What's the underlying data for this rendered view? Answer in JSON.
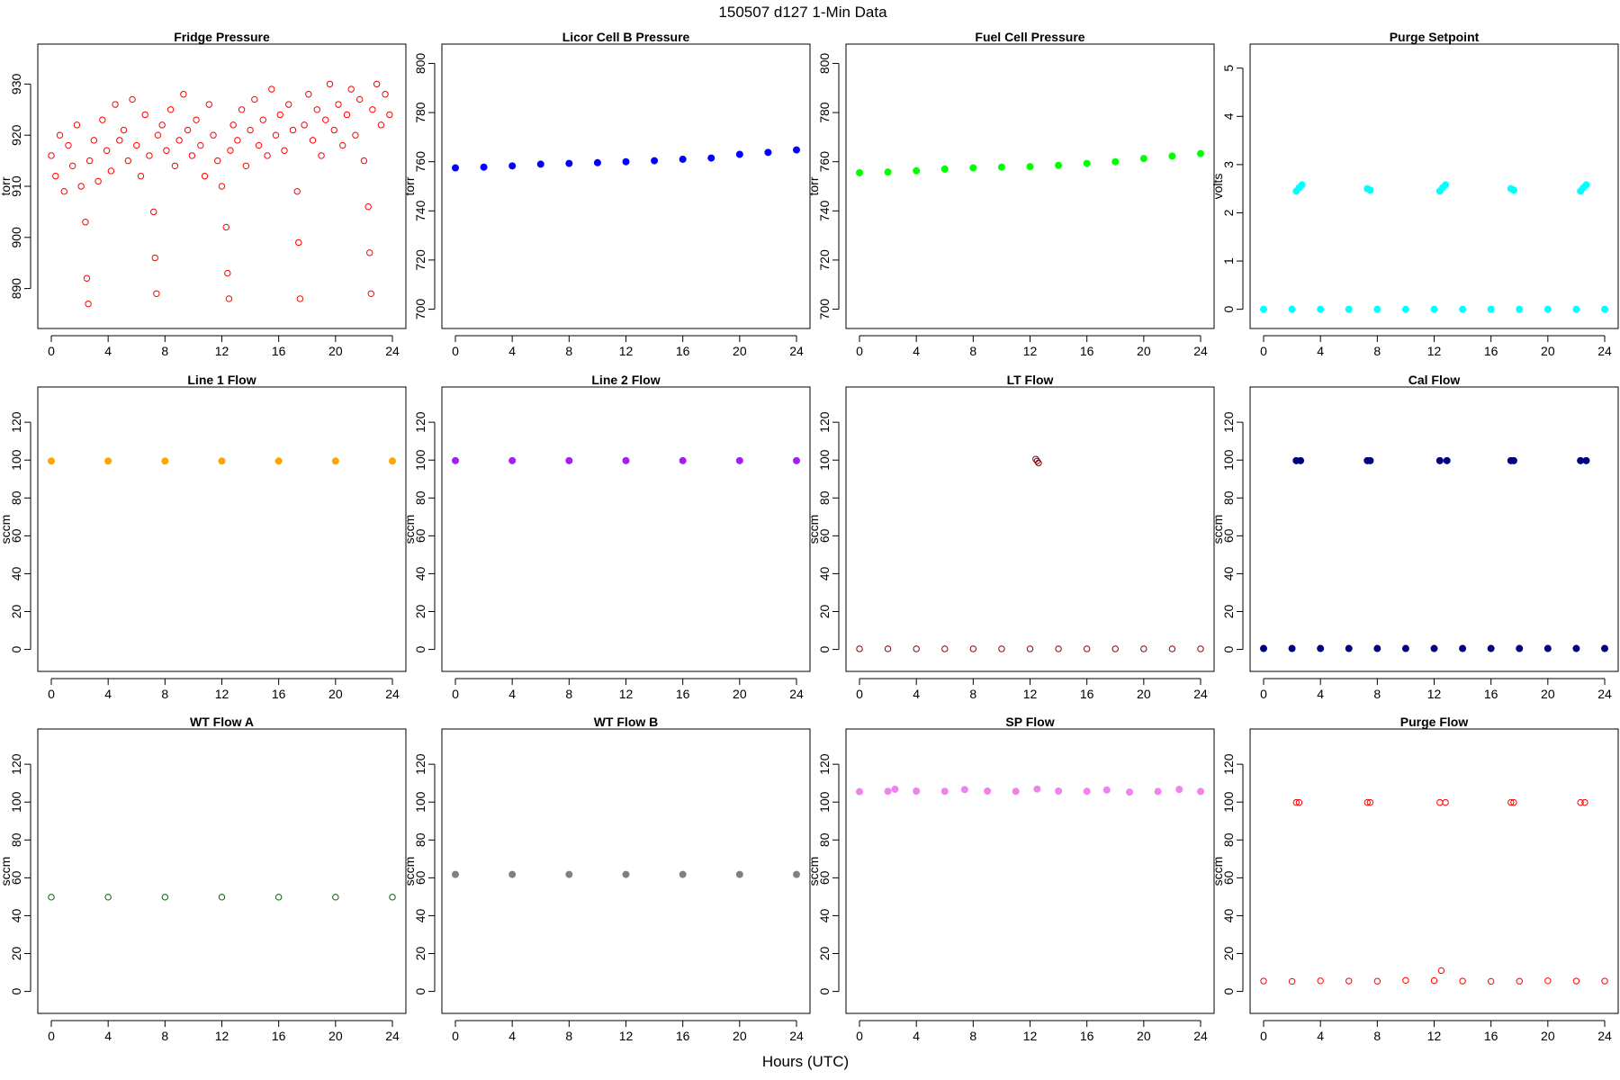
{
  "figure": {
    "title": "150507   d127   1-Min Data",
    "xlabel": "Hours (UTC)"
  },
  "chart_data": [
    {
      "type": "scatter",
      "title": "Fridge Pressure",
      "ylabel": "torr",
      "color": "#ff0000",
      "marker": "open-circle",
      "xlim": [
        0,
        24
      ],
      "ylim": [
        885,
        935
      ],
      "x_ticks": [
        0,
        4,
        8,
        12,
        16,
        20,
        24
      ],
      "y_ticks": [
        890,
        900,
        910,
        920,
        930
      ],
      "series": [
        {
          "x": [
            0.0,
            0.3,
            0.6,
            0.9,
            1.2,
            1.5,
            1.8,
            2.1,
            2.4,
            2.5,
            2.6,
            2.7,
            3.0,
            3.3,
            3.6,
            3.9,
            4.2,
            4.5,
            4.8,
            5.1,
            5.4,
            5.7,
            6.0,
            6.3,
            6.6,
            6.9,
            7.2,
            7.3,
            7.4,
            7.5,
            7.8,
            8.1,
            8.4,
            8.7,
            9.0,
            9.3,
            9.6,
            9.9,
            10.2,
            10.5,
            10.8,
            11.1,
            11.4,
            11.7,
            12.0,
            12.3,
            12.4,
            12.5,
            12.6,
            12.8,
            13.1,
            13.4,
            13.7,
            14.0,
            14.3,
            14.6,
            14.9,
            15.2,
            15.5,
            15.8,
            16.1,
            16.4,
            16.7,
            17.0,
            17.3,
            17.4,
            17.5,
            17.8,
            18.1,
            18.4,
            18.7,
            19.0,
            19.3,
            19.6,
            19.9,
            20.2,
            20.5,
            20.8,
            21.1,
            21.4,
            21.7,
            22.0,
            22.3,
            22.4,
            22.5,
            22.6,
            22.9,
            23.2,
            23.5,
            23.8
          ],
          "y": [
            916,
            912,
            920,
            909,
            918,
            914,
            922,
            910,
            903,
            892,
            887,
            915,
            919,
            911,
            923,
            917,
            913,
            926,
            919,
            921,
            915,
            927,
            918,
            912,
            924,
            916,
            905,
            896,
            889,
            920,
            922,
            917,
            925,
            914,
            919,
            928,
            921,
            916,
            923,
            918,
            912,
            926,
            920,
            915,
            910,
            902,
            893,
            888,
            917,
            922,
            919,
            925,
            914,
            921,
            927,
            918,
            923,
            916,
            929,
            920,
            924,
            917,
            926,
            921,
            909,
            899,
            888,
            922,
            928,
            919,
            925,
            916,
            923,
            930,
            921,
            926,
            918,
            924,
            929,
            920,
            927,
            915,
            906,
            897,
            889,
            925,
            930,
            922,
            928,
            924
          ]
        }
      ]
    },
    {
      "type": "scatter",
      "title": "Licor Cell B Pressure",
      "ylabel": "torr",
      "color": "#0000ff",
      "marker": "filled-circle",
      "xlim": [
        0,
        24
      ],
      "ylim": [
        698,
        802
      ],
      "x_ticks": [
        0,
        4,
        8,
        12,
        16,
        20,
        24
      ],
      "y_ticks": [
        700,
        720,
        740,
        760,
        780,
        800
      ],
      "series": [
        {
          "x": [
            0,
            2,
            4,
            6,
            8,
            10,
            12,
            14,
            16,
            18,
            20,
            22,
            24
          ],
          "y": [
            757.5,
            757.8,
            758.3,
            759.0,
            759.3,
            759.6,
            760.0,
            760.4,
            761.0,
            761.5,
            763.0,
            763.8,
            764.8
          ]
        }
      ]
    },
    {
      "type": "scatter",
      "title": "Fuel Cell Pressure",
      "ylabel": "torr",
      "color": "#00ff00",
      "marker": "filled-circle",
      "xlim": [
        0,
        24
      ],
      "ylim": [
        698,
        802
      ],
      "x_ticks": [
        0,
        4,
        8,
        12,
        16,
        20,
        24
      ],
      "y_ticks": [
        700,
        720,
        740,
        760,
        780,
        800
      ],
      "series": [
        {
          "x": [
            0,
            2,
            4,
            6,
            8,
            10,
            12,
            14,
            16,
            18,
            20,
            22,
            24
          ],
          "y": [
            755.5,
            755.8,
            756.3,
            757.0,
            757.5,
            757.8,
            758.0,
            758.5,
            759.3,
            760.0,
            761.3,
            762.3,
            763.3
          ]
        }
      ]
    },
    {
      "type": "scatter",
      "title": "Purge Setpoint",
      "ylabel": "volts",
      "color": "#00ffff",
      "marker": "filled-circle",
      "xlim": [
        0,
        24
      ],
      "ylim": [
        -0.1,
        5.2
      ],
      "x_ticks": [
        0,
        4,
        8,
        12,
        16,
        20,
        24
      ],
      "y_ticks": [
        0,
        1,
        2,
        3,
        4,
        5
      ],
      "series": [
        {
          "x": [
            0,
            2,
            4,
            6,
            8,
            10,
            12,
            14,
            16,
            18,
            20,
            22,
            24,
            2.3,
            2.5,
            2.7,
            7.3,
            7.5,
            12.4,
            12.6,
            12.8,
            17.4,
            17.6,
            22.3,
            22.5,
            22.7
          ],
          "y": [
            0,
            0,
            0,
            0,
            0,
            0,
            0,
            0,
            0,
            0,
            0,
            0,
            0,
            2.45,
            2.52,
            2.58,
            2.5,
            2.47,
            2.45,
            2.52,
            2.58,
            2.5,
            2.47,
            2.45,
            2.52,
            2.58
          ]
        }
      ]
    },
    {
      "type": "scatter",
      "title": "Line 1 Flow",
      "ylabel": "sccm",
      "color": "#ffa500",
      "marker": "filled-circle",
      "xlim": [
        0,
        24
      ],
      "ylim": [
        -4,
        131
      ],
      "x_ticks": [
        0,
        4,
        8,
        12,
        16,
        20,
        24
      ],
      "y_ticks": [
        0,
        20,
        40,
        60,
        80,
        100,
        120
      ],
      "series": [
        {
          "x": [
            0,
            4,
            8,
            12,
            16,
            20,
            24
          ],
          "y": [
            99.5,
            99.5,
            99.5,
            99.5,
            99.5,
            99.5,
            99.5
          ]
        }
      ]
    },
    {
      "type": "scatter",
      "title": "Line 2 Flow",
      "ylabel": "sccm",
      "color": "#a020f0",
      "marker": "filled-circle",
      "xlim": [
        0,
        24
      ],
      "ylim": [
        -4,
        131
      ],
      "x_ticks": [
        0,
        4,
        8,
        12,
        16,
        20,
        24
      ],
      "y_ticks": [
        0,
        20,
        40,
        60,
        80,
        100,
        120
      ],
      "series": [
        {
          "x": [
            0,
            4,
            8,
            12,
            16,
            20,
            24
          ],
          "y": [
            99.7,
            99.7,
            99.7,
            99.7,
            99.7,
            99.7,
            99.7
          ]
        }
      ]
    },
    {
      "type": "scatter",
      "title": "LT Flow",
      "ylabel": "sccm",
      "color": "#8b0000",
      "marker": "open-circle",
      "xlim": [
        0,
        24
      ],
      "ylim": [
        -4,
        131
      ],
      "x_ticks": [
        0,
        4,
        8,
        12,
        16,
        20,
        24
      ],
      "y_ticks": [
        0,
        20,
        40,
        60,
        80,
        100,
        120
      ],
      "series": [
        {
          "x": [
            0,
            2,
            4,
            6,
            8,
            10,
            12,
            14,
            16,
            18,
            20,
            22,
            24,
            12.4,
            12.5,
            12.6
          ],
          "y": [
            0.3,
            0.3,
            0.3,
            0.3,
            0.3,
            0.3,
            0.3,
            0.3,
            0.3,
            0.3,
            0.3,
            0.3,
            0.3,
            100.5,
            99.5,
            98.5
          ]
        }
      ]
    },
    {
      "type": "scatter",
      "title": "Cal Flow",
      "ylabel": "sccm",
      "color": "#000080",
      "marker": "filled-circle",
      "xlim": [
        0,
        24
      ],
      "ylim": [
        -4,
        131
      ],
      "x_ticks": [
        0,
        4,
        8,
        12,
        16,
        20,
        24
      ],
      "y_ticks": [
        0,
        20,
        40,
        60,
        80,
        100,
        120
      ],
      "series": [
        {
          "x": [
            0,
            2,
            4,
            6,
            8,
            10,
            12,
            14,
            16,
            18,
            20,
            22,
            24,
            2.3,
            2.6,
            7.3,
            7.5,
            12.4,
            12.9,
            17.4,
            17.6,
            22.3,
            22.7
          ],
          "y": [
            0.5,
            0.5,
            0.5,
            0.5,
            0.5,
            0.5,
            0.5,
            0.5,
            0.5,
            0.5,
            0.5,
            0.5,
            0.5,
            99.7,
            99.7,
            99.7,
            99.7,
            99.7,
            99.7,
            99.7,
            99.7,
            99.7,
            99.7
          ]
        }
      ]
    },
    {
      "type": "scatter",
      "title": "WT Flow A",
      "ylabel": "sccm",
      "color": "#006400",
      "marker": "open-circle",
      "xlim": [
        0,
        24
      ],
      "ylim": [
        -4,
        131
      ],
      "x_ticks": [
        0,
        4,
        8,
        12,
        16,
        20,
        24
      ],
      "y_ticks": [
        0,
        20,
        40,
        60,
        80,
        100,
        120
      ],
      "series": [
        {
          "x": [
            0,
            4,
            8,
            12,
            16,
            20,
            24
          ],
          "y": [
            49.8,
            49.8,
            49.8,
            49.8,
            49.8,
            49.8,
            49.8
          ]
        }
      ]
    },
    {
      "type": "scatter",
      "title": "WT Flow B",
      "ylabel": "sccm",
      "color": "#808080",
      "marker": "filled-circle",
      "xlim": [
        0,
        24
      ],
      "ylim": [
        -4,
        131
      ],
      "x_ticks": [
        0,
        4,
        8,
        12,
        16,
        20,
        24
      ],
      "y_ticks": [
        0,
        20,
        40,
        60,
        80,
        100,
        120
      ],
      "series": [
        {
          "x": [
            0,
            4,
            8,
            12,
            16,
            20,
            24
          ],
          "y": [
            61.8,
            61.8,
            61.8,
            61.8,
            61.8,
            61.8,
            61.8
          ]
        }
      ]
    },
    {
      "type": "scatter",
      "title": "SP Flow",
      "ylabel": "sccm",
      "color": "#ee82ee",
      "marker": "filled-circle",
      "xlim": [
        0,
        24
      ],
      "ylim": [
        -4,
        131
      ],
      "x_ticks": [
        0,
        4,
        8,
        12,
        16,
        20,
        24
      ],
      "y_ticks": [
        0,
        20,
        40,
        60,
        80,
        100,
        120
      ],
      "series": [
        {
          "x": [
            0,
            2,
            2.5,
            4,
            6,
            7.4,
            9,
            11,
            12.5,
            14,
            16,
            17.4,
            19,
            21,
            22.5,
            24
          ],
          "y": [
            105.5,
            105.7,
            106.8,
            105.8,
            105.7,
            106.6,
            105.8,
            105.7,
            106.9,
            105.8,
            105.7,
            106.4,
            105.3,
            105.6,
            106.7,
            105.6
          ]
        }
      ]
    },
    {
      "type": "scatter",
      "title": "Purge Flow",
      "ylabel": "sccm",
      "color": "#ff0000",
      "marker": "open-circle",
      "xlim": [
        0,
        24
      ],
      "ylim": [
        -4,
        131
      ],
      "x_ticks": [
        0,
        4,
        8,
        12,
        16,
        20,
        24
      ],
      "y_ticks": [
        0,
        20,
        40,
        60,
        80,
        100,
        120
      ],
      "series": [
        {
          "x": [
            0,
            2,
            4,
            6,
            8,
            10,
            12,
            12.5,
            14,
            16,
            18,
            20,
            22,
            24,
            2.3,
            2.5,
            7.3,
            7.5,
            12.4,
            12.8,
            17.4,
            17.6,
            22.3,
            22.6
          ],
          "y": [
            5.5,
            5.3,
            5.6,
            5.5,
            5.4,
            5.8,
            5.7,
            11,
            5.5,
            5.3,
            5.4,
            5.6,
            5.5,
            5.5,
            99.8,
            99.8,
            99.8,
            99.8,
            99.8,
            99.8,
            99.8,
            99.8,
            99.8,
            99.8
          ]
        }
      ]
    }
  ]
}
